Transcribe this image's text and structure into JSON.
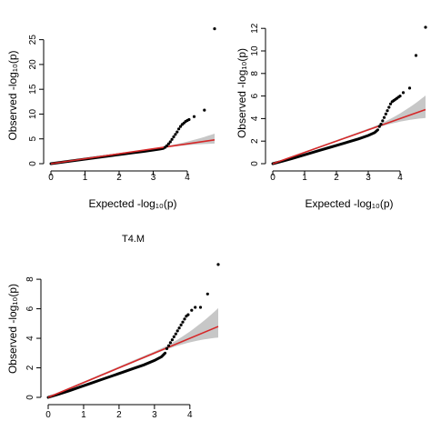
{
  "chart_data": [
    {
      "type": "scatter",
      "title": "",
      "xlabel": "Expected  -log₁₀(p)",
      "ylabel": "Observed  -log₁₀(p)",
      "xlim": [
        0,
        4.8
      ],
      "ylim": [
        0,
        27.5
      ],
      "xticks": [
        0,
        1,
        2,
        3,
        4
      ],
      "yticks": [
        0,
        5,
        10,
        15,
        20,
        25
      ],
      "grid": false,
      "reference_line": {
        "slope": 1,
        "intercept": 0,
        "color": "#d62728"
      },
      "confidence_band_color": "#bdbdbd",
      "point_color": "#000000",
      "series": [
        {
          "x": [
            0.0,
            0.3,
            0.6,
            0.9,
            1.2,
            1.5,
            1.8,
            2.1,
            2.4,
            2.7,
            3.0,
            3.2,
            3.3
          ],
          "y": [
            0.0,
            0.27,
            0.55,
            0.82,
            1.1,
            1.38,
            1.65,
            1.92,
            2.2,
            2.45,
            2.75,
            2.95,
            3.1
          ]
        },
        {
          "x": [
            3.35,
            3.4,
            3.45,
            3.5,
            3.55,
            3.6,
            3.65,
            3.7,
            3.75,
            3.8,
            3.85,
            3.9,
            3.95,
            4.0,
            4.05,
            4.2,
            4.5,
            4.8
          ],
          "y": [
            3.3,
            3.6,
            4.0,
            4.4,
            4.9,
            5.4,
            5.9,
            6.4,
            7.0,
            7.5,
            7.9,
            8.2,
            8.5,
            8.7,
            8.9,
            9.5,
            10.8,
            27.2
          ]
        }
      ]
    },
    {
      "type": "scatter",
      "title": "",
      "xlabel": "Expected  -log₁₀(p)",
      "ylabel": "Observed  -log₁₀(p)",
      "xlim": [
        0,
        4.8
      ],
      "ylim": [
        0,
        12.5
      ],
      "xticks": [
        0,
        1,
        2,
        3,
        4
      ],
      "yticks": [
        0,
        2,
        4,
        6,
        8,
        10,
        12
      ],
      "grid": false,
      "reference_line": {
        "slope": 1,
        "intercept": 0,
        "color": "#d62728"
      },
      "confidence_band_color": "#bdbdbd",
      "point_color": "#000000",
      "series": [
        {
          "x": [
            0.0,
            0.3,
            0.6,
            0.9,
            1.2,
            1.5,
            1.8,
            2.1,
            2.4,
            2.7,
            3.0,
            3.2,
            3.3
          ],
          "y": [
            0.0,
            0.22,
            0.45,
            0.7,
            0.95,
            1.2,
            1.45,
            1.7,
            1.95,
            2.2,
            2.5,
            2.75,
            3.0
          ]
        },
        {
          "x": [
            3.35,
            3.4,
            3.45,
            3.5,
            3.55,
            3.6,
            3.65,
            3.7,
            3.75,
            3.8,
            3.85,
            3.9,
            3.95,
            4.0,
            4.1,
            4.3,
            4.5,
            4.8
          ],
          "y": [
            3.3,
            3.5,
            3.8,
            4.1,
            4.4,
            4.7,
            5.0,
            5.3,
            5.5,
            5.6,
            5.7,
            5.8,
            5.9,
            6.0,
            6.3,
            6.7,
            9.6,
            12.1
          ]
        }
      ]
    },
    {
      "type": "scatter",
      "title": "T4.M",
      "xlabel": "",
      "ylabel": "Observed  -log₁₀(p)",
      "xlim": [
        0,
        4.8
      ],
      "ylim": [
        0,
        9.3
      ],
      "xticks": [
        0,
        1,
        2,
        3,
        4
      ],
      "yticks": [
        0,
        2,
        4,
        6,
        8
      ],
      "grid": false,
      "reference_line": {
        "slope": 1,
        "intercept": 0,
        "color": "#d62728"
      },
      "confidence_band_color": "#bdbdbd",
      "point_color": "#000000",
      "series": [
        {
          "x": [
            0.0,
            0.3,
            0.6,
            0.9,
            1.2,
            1.5,
            1.8,
            2.1,
            2.4,
            2.7,
            3.0,
            3.2,
            3.3
          ],
          "y": [
            0.0,
            0.22,
            0.45,
            0.7,
            0.95,
            1.2,
            1.45,
            1.7,
            1.95,
            2.2,
            2.5,
            2.75,
            3.0
          ]
        },
        {
          "x": [
            3.35,
            3.4,
            3.45,
            3.5,
            3.55,
            3.6,
            3.65,
            3.7,
            3.75,
            3.8,
            3.85,
            3.9,
            3.95,
            4.05,
            4.15,
            4.3,
            4.5,
            4.8
          ],
          "y": [
            3.3,
            3.5,
            3.7,
            3.9,
            4.1,
            4.3,
            4.5,
            4.7,
            4.9,
            5.1,
            5.3,
            5.5,
            5.6,
            5.9,
            6.1,
            6.1,
            7.0,
            9.0
          ]
        }
      ]
    }
  ]
}
